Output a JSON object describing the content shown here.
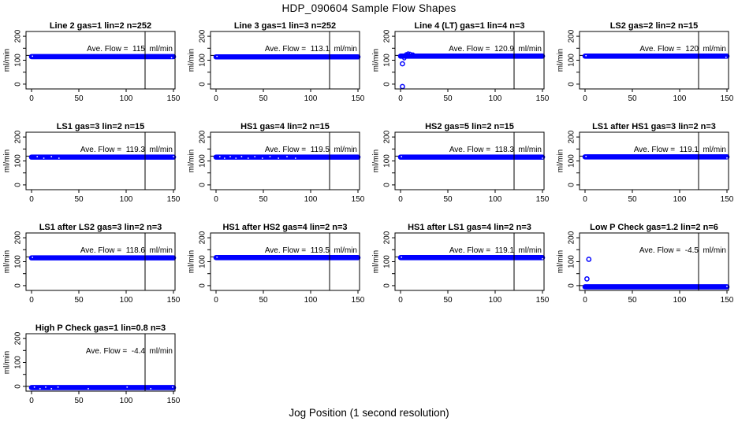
{
  "figure": {
    "title": "HDP_090604  Sample Flow Shapes",
    "xlabel": "Jog Position (1 second resolution)",
    "ylabel": "ml/min"
  },
  "chart_data": {
    "type": "scatter",
    "title": "HDP_090604  Sample Flow Shapes",
    "xlabel": "Jog Position (1 second resolution)",
    "ylabel": "ml/min",
    "layout": {
      "grid_rows": 4,
      "grid_cols": 4,
      "x_ticks": [
        0,
        50,
        100,
        150
      ],
      "y_ticks_all": [
        0,
        50,
        100,
        150,
        200
      ],
      "y_ticks_labeled": [
        0,
        100,
        200
      ],
      "xlim": [
        -6,
        152
      ],
      "ylim": [
        -20,
        220
      ],
      "vline_x": 120,
      "point_color": "#0000ff",
      "axis_color": "#000000",
      "background": "#ffffff"
    },
    "ave_label_prefix": "Ave. Flow = ",
    "ave_label_suffix": " ml/min",
    "panels": [
      {
        "title": "Line 2 gas=1 lin=2 n=252",
        "ave_flow": "115",
        "n": 252,
        "flow_band": {
          "x_range": [
            0,
            150
          ],
          "y_center": 115
        },
        "target_line_y": 120,
        "outliers": [],
        "ramp_points": [],
        "speck_xs": [
          1,
          148
        ]
      },
      {
        "title": "Line 3 gas=1 lin=3 n=252",
        "ave_flow": "113.1",
        "n": 252,
        "flow_band": {
          "x_range": [
            0,
            150
          ],
          "y_center": 114
        },
        "target_line_y": 120,
        "outliers": [],
        "ramp_points": [],
        "speck_xs": [
          1
        ]
      },
      {
        "title": "Line 4 (LT) gas=1 lin=4 n=3",
        "ave_flow": "120.9",
        "n": 3,
        "flow_band": {
          "x_range": [
            0,
            150
          ],
          "y_center": 117
        },
        "target_line_y": 120,
        "outliers": [
          [
            2,
            85
          ],
          [
            2,
            -10
          ]
        ],
        "ramp_points": [
          [
            4,
            108
          ],
          [
            6,
            125
          ],
          [
            8,
            128
          ],
          [
            10,
            127
          ],
          [
            13,
            124
          ]
        ],
        "speck_xs": []
      },
      {
        "title": "LS2 gas=2 lin=2 n=15",
        "ave_flow": "120",
        "n": 15,
        "flow_band": {
          "x_range": [
            0,
            150
          ],
          "y_center": 117
        },
        "target_line_y": 120,
        "outliers": [],
        "ramp_points": [],
        "speck_xs": [
          1,
          149
        ]
      },
      {
        "title": "LS1 gas=3 lin=2 n=15",
        "ave_flow": "119.3",
        "n": 15,
        "flow_band": {
          "x_range": [
            0,
            150
          ],
          "y_center": 116
        },
        "target_line_y": 120,
        "outliers": [],
        "ramp_points": [],
        "speck_xs": [
          6,
          13,
          21,
          29,
          150
        ]
      },
      {
        "title": "HS1 gas=4 lin=2 n=15",
        "ave_flow": "119.5",
        "n": 15,
        "flow_band": {
          "x_range": [
            0,
            150
          ],
          "y_center": 116
        },
        "target_line_y": 120,
        "outliers": [],
        "ramp_points": [],
        "speck_xs": [
          4,
          9,
          15,
          21,
          27,
          34,
          41,
          49,
          57,
          66,
          75,
          84
        ]
      },
      {
        "title": "HS2 gas=5 lin=2 n=15",
        "ave_flow": "118.3",
        "n": 15,
        "flow_band": {
          "x_range": [
            0,
            150
          ],
          "y_center": 116
        },
        "target_line_y": 120,
        "outliers": [],
        "ramp_points": [],
        "speck_xs": [
          1,
          150
        ]
      },
      {
        "title": "LS1 after HS1 gas=3 lin=2 n=3",
        "ave_flow": "119.1",
        "n": 3,
        "flow_band": {
          "x_range": [
            0,
            150
          ],
          "y_center": 117
        },
        "target_line_y": 120,
        "outliers": [],
        "ramp_points": [],
        "speck_xs": [
          1,
          150
        ]
      },
      {
        "title": "LS1 after LS2 gas=3 lin=2 n=3",
        "ave_flow": "118.6",
        "n": 3,
        "flow_band": {
          "x_range": [
            0,
            150
          ],
          "y_center": 116
        },
        "target_line_y": 120,
        "outliers": [],
        "ramp_points": [],
        "speck_xs": [
          1
        ]
      },
      {
        "title": "HS1 after HS2 gas=4 lin=2 n=3",
        "ave_flow": "119.5",
        "n": 3,
        "flow_band": {
          "x_range": [
            0,
            150
          ],
          "y_center": 117
        },
        "target_line_y": 120,
        "outliers": [],
        "ramp_points": [],
        "speck_xs": [
          1
        ]
      },
      {
        "title": "HS1 after LS1 gas=4 lin=2 n=3",
        "ave_flow": "119.1",
        "n": 3,
        "flow_band": {
          "x_range": [
            0,
            150
          ],
          "y_center": 117
        },
        "target_line_y": 120,
        "outliers": [],
        "ramp_points": [],
        "speck_xs": [
          1,
          150
        ]
      },
      {
        "title": "Low P Check gas=1.2 lin=2 n=6",
        "ave_flow": "-4.5",
        "n": 6,
        "flow_band": {
          "x_range": [
            0,
            150
          ],
          "y_center": -5
        },
        "target_line_y": 0,
        "outliers": [
          [
            4,
            110
          ],
          [
            2,
            28
          ]
        ],
        "ramp_points": [],
        "speck_xs": [
          150
        ]
      },
      {
        "title": "High P Check gas=1 lin=0.8 n=3",
        "ave_flow": "-4.4",
        "n": 3,
        "flow_band": {
          "x_range": [
            0,
            150
          ],
          "y_center": -5
        },
        "target_line_y": 0,
        "outliers": [],
        "ramp_points": [],
        "speck_xs": [
          3,
          9,
          15,
          21,
          28,
          60,
          101,
          126,
          149
        ]
      }
    ]
  }
}
